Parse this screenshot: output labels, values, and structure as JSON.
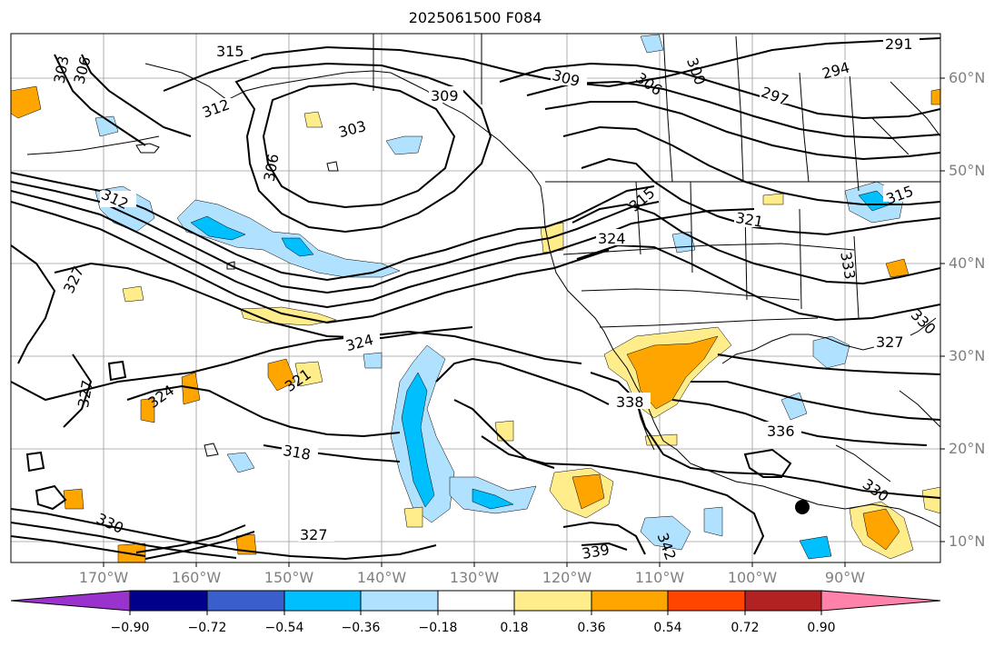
{
  "title": "2025061500 F084",
  "lat_labels": [
    "60°N",
    "50°N",
    "40°N",
    "30°N",
    "20°N",
    "10°N"
  ],
  "lon_labels": [
    "170°W",
    "160°W",
    "150°W",
    "140°W",
    "130°W",
    "120°W",
    "110°W",
    "100°W",
    "90°W"
  ],
  "colorbar": {
    "tick_labels": [
      "−0.90",
      "−0.72",
      "−0.54",
      "−0.36",
      "−0.18",
      "0.18",
      "0.36",
      "0.54",
      "0.72",
      "0.90"
    ],
    "colors": [
      "#9a32cd",
      "#00008b",
      "#3a5fcd",
      "#00bfff",
      "#b0e2ff",
      "#ffffff",
      "#ffec8b",
      "#ffa500",
      "#ff4500",
      "#b22222",
      "#ff82ab"
    ]
  },
  "contour_labels": [
    "315",
    "303",
    "306",
    "312",
    "309",
    "303",
    "306",
    "306",
    "300",
    "309",
    "291",
    "294",
    "297",
    "312",
    "315",
    "315",
    "321",
    "324",
    "333",
    "327",
    "330",
    "327",
    "324",
    "324",
    "321",
    "327",
    "338",
    "336",
    "330",
    "318",
    "330",
    "327",
    "339",
    "342"
  ],
  "marker": "black-dot"
}
